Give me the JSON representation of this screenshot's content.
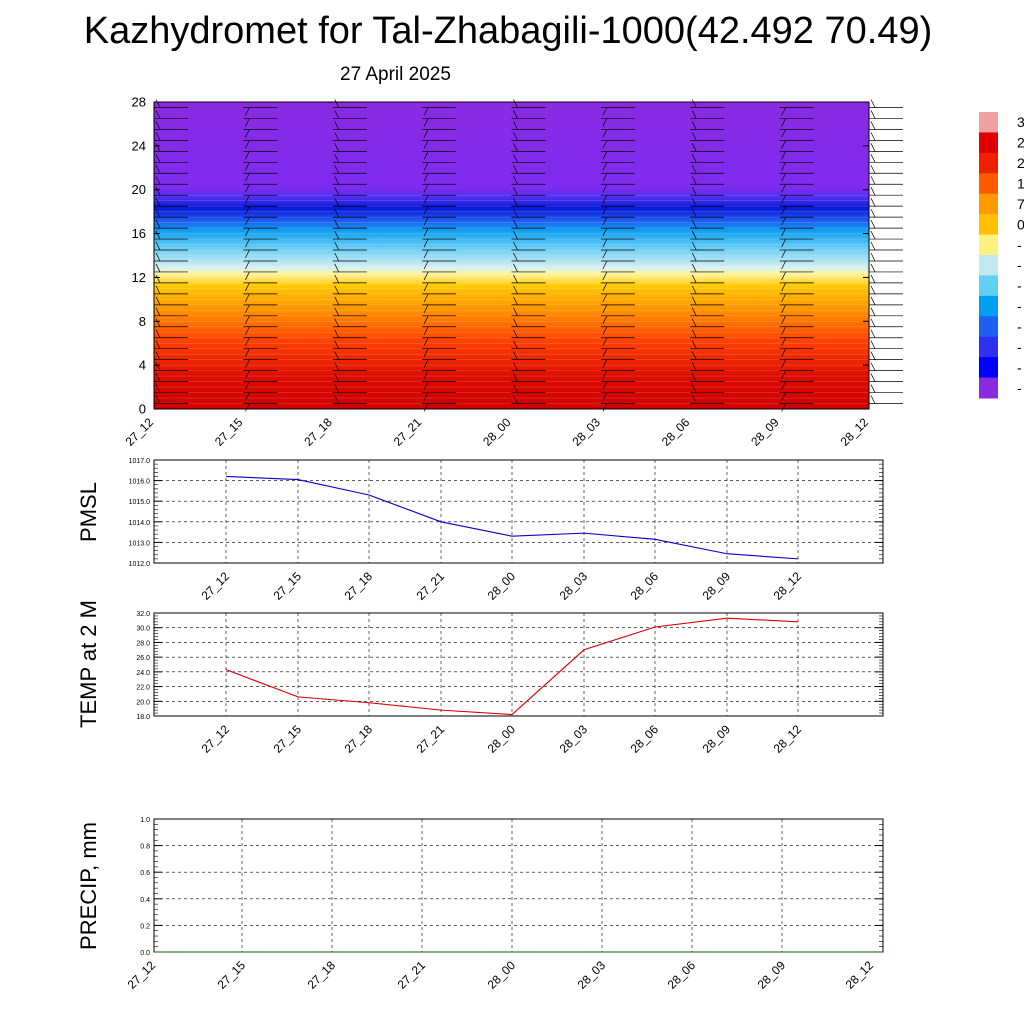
{
  "title": "Kazhydromet for Tal-Zhabagili-1000(42.492 70.49)",
  "subtitle": "27 April 2025",
  "chart_data": [
    {
      "type": "heatmap",
      "name": "vertical-profile",
      "title": "",
      "x_tick_labels": [
        "27_12",
        "27_15",
        "27_18",
        "27_21",
        "28_00",
        "28_03",
        "28_06",
        "28_09",
        "28_12"
      ],
      "ylim": [
        0,
        28
      ],
      "y_ticks": [
        0,
        4,
        8,
        12,
        16,
        20,
        24,
        28
      ],
      "y_tick_labels": [
        "0",
        "4",
        "8",
        "12",
        "16",
        "20",
        "24",
        "28"
      ],
      "colorbar_labels": [
        "3",
        "2",
        "2",
        "1",
        "7",
        "0",
        "-",
        "-",
        "-",
        "-",
        "-",
        "-",
        "-",
        "-"
      ],
      "colorbar_colors": [
        "#f0a0a0",
        "#e00000",
        "#f02000",
        "#ff5a00",
        "#ff9a00",
        "#ffc000",
        "#fff080",
        "#c0e8f0",
        "#60d0f0",
        "#00a0f0",
        "#2060f0",
        "#3030f0",
        "#0000ff",
        "#8a2be2"
      ]
    },
    {
      "type": "line",
      "name": "pmsl",
      "ylabel": "PMSL",
      "categories": [
        "27_12",
        "27_15",
        "27_18",
        "27_21",
        "28_00",
        "28_03",
        "28_06",
        "28_09",
        "28_12"
      ],
      "values": [
        1016.2,
        1016.05,
        1015.3,
        1014.0,
        1013.3,
        1013.45,
        1013.15,
        1012.45,
        1012.2
      ],
      "ylim": [
        1012.0,
        1017.0
      ],
      "y_ticks": [
        "1017.0",
        "1016.0",
        "1015.0",
        "1014.0",
        "1013.0",
        "1012.0"
      ],
      "color": "#0000cc",
      "grid": true
    },
    {
      "type": "line",
      "name": "temp2m",
      "ylabel": "TEMP at 2 M",
      "categories": [
        "27_12",
        "27_15",
        "27_18",
        "27_21",
        "28_00",
        "28_03",
        "28_06",
        "28_09",
        "28_12"
      ],
      "values": [
        24.3,
        20.6,
        19.8,
        18.8,
        18.2,
        27.0,
        30.1,
        31.3,
        30.8
      ],
      "ylim": [
        18.0,
        32.0
      ],
      "y_ticks": [
        "32.0",
        "30.0",
        "28.0",
        "26.0",
        "24.0",
        "22.0",
        "20.0",
        "18.0"
      ],
      "color": "#dd0000",
      "grid": true
    },
    {
      "type": "line",
      "name": "precip",
      "ylabel": "PRECIP, mm",
      "x_tick_labels": [
        "27_12",
        "27_15",
        "27_18",
        "27_21",
        "28_00",
        "28_03",
        "28_06",
        "28_09",
        "28_12"
      ],
      "values": [
        0,
        0,
        0,
        0,
        0,
        0,
        0,
        0,
        0
      ],
      "ylim": [
        0.0,
        1.0
      ],
      "y_ticks": [
        "1.0",
        "0.8",
        "0.6",
        "0.4",
        "0.2",
        "0.0"
      ],
      "color": "#006600",
      "grid": true
    }
  ]
}
